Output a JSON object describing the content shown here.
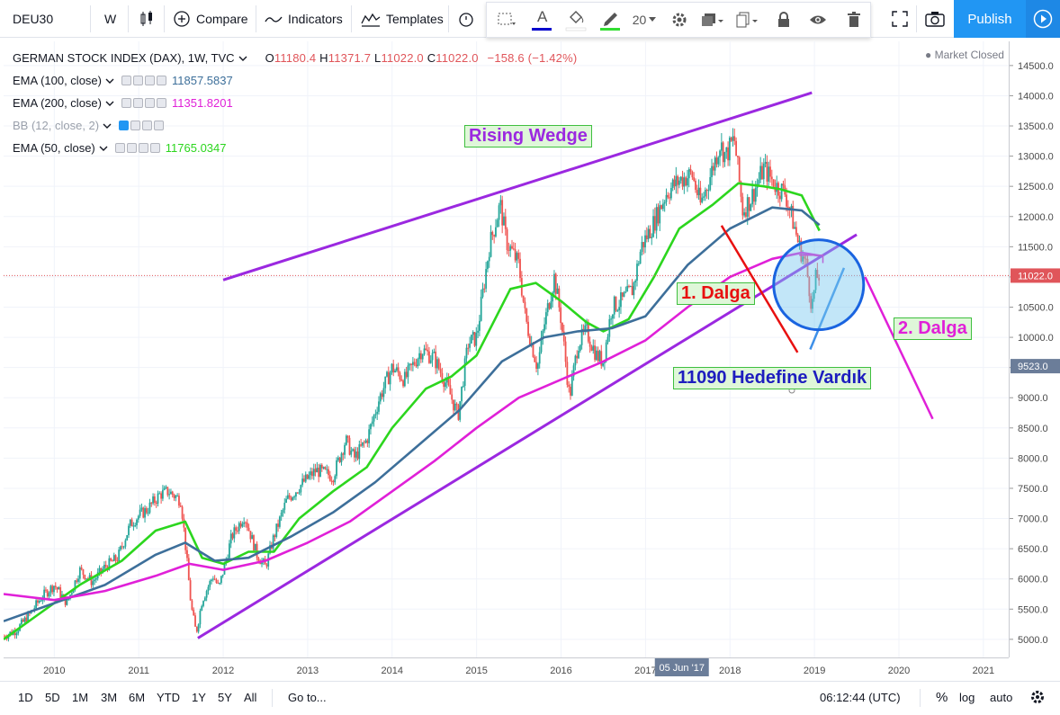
{
  "toolbar": {
    "symbol": "DEU30",
    "interval": "W",
    "compare_label": "Compare",
    "indicators_label": "Indicators",
    "templates_label": "Templates",
    "line_width": "20",
    "publish_label": "Publish"
  },
  "legend": {
    "title": "GERMAN STOCK INDEX (DAX), 1W, TVC",
    "ohlc": {
      "o": "11180.4",
      "h": "11371.7",
      "l": "11022.0",
      "c": "11022.0",
      "change": "−158.6 (−1.42%)"
    },
    "indicators": [
      {
        "label": "EMA (100, close)",
        "value": "11857.5837",
        "color": "#3d6f9a"
      },
      {
        "label": "EMA (200, close)",
        "value": "11351.8201",
        "color": "#e020d8"
      },
      {
        "label": "BB (12, close, 2)",
        "value": "",
        "color": "#9aa0ab"
      },
      {
        "label": "EMA (50, close)",
        "value": "11765.0347",
        "color": "#2cd61e"
      }
    ],
    "market_status": "Market Closed"
  },
  "annotations": {
    "rising_wedge": "Rising Wedge",
    "dalga1": "1. Dalga",
    "dalga2": "2. Dalga",
    "target": "11090 Hedefine Vardık"
  },
  "bottombar": {
    "ranges": [
      "1D",
      "5D",
      "1M",
      "3M",
      "6M",
      "YTD",
      "1Y",
      "5Y",
      "All"
    ],
    "goto_label": "Go to...",
    "clock": "06:12:44 (UTC)",
    "percent": "%",
    "log": "log",
    "auto": "auto"
  },
  "colors": {
    "up": "#26a69a",
    "down": "#ef5350",
    "ema50": "#2cd61e",
    "ema100": "#3d6f9a",
    "ema200": "#e020d8",
    "wedge": "#9b28e0",
    "accent": "#2196f3"
  },
  "chart_data": {
    "type": "candlestick",
    "title": "GERMAN STOCK INDEX (DAX), 1W, TVC",
    "interval": "weekly",
    "y_ticks": [
      5000,
      5500,
      6000,
      6500,
      7000,
      7500,
      8000,
      8500,
      9000,
      9500,
      10000,
      10500,
      11000,
      11500,
      12000,
      12500,
      13000,
      13500,
      14000,
      14500
    ],
    "x_ticks": [
      "2010",
      "2011",
      "2012",
      "2013",
      "2014",
      "2015",
      "2016",
      "2017",
      "2018",
      "2019",
      "2020",
      "2021"
    ],
    "ylim": [
      4700,
      14900
    ],
    "xlim": [
      2009.4,
      2021.3
    ],
    "price_labels": {
      "last": "11022.0",
      "marker": "9523.0"
    },
    "time_marker": "05 Jun '17",
    "price_path": [
      [
        2009.4,
        5050
      ],
      [
        2009.55,
        5150
      ],
      [
        2009.7,
        5400
      ],
      [
        2009.85,
        5700
      ],
      [
        2010.0,
        5900
      ],
      [
        2010.15,
        5600
      ],
      [
        2010.3,
        6150
      ],
      [
        2010.45,
        5950
      ],
      [
        2010.6,
        6200
      ],
      [
        2010.75,
        6350
      ],
      [
        2010.9,
        6900
      ],
      [
        2011.0,
        7050
      ],
      [
        2011.1,
        7150
      ],
      [
        2011.25,
        7400
      ],
      [
        2011.35,
        7450
      ],
      [
        2011.5,
        7300
      ],
      [
        2011.55,
        6600
      ],
      [
        2011.62,
        5550
      ],
      [
        2011.68,
        5100
      ],
      [
        2011.75,
        5650
      ],
      [
        2011.88,
        6050
      ],
      [
        2011.95,
        5850
      ],
      [
        2012.1,
        6700
      ],
      [
        2012.25,
        7050
      ],
      [
        2012.4,
        6400
      ],
      [
        2012.5,
        6200
      ],
      [
        2012.6,
        6700
      ],
      [
        2012.75,
        7300
      ],
      [
        2012.95,
        7600
      ],
      [
        2013.1,
        7800
      ],
      [
        2013.3,
        7700
      ],
      [
        2013.45,
        8300
      ],
      [
        2013.55,
        8000
      ],
      [
        2013.7,
        8300
      ],
      [
        2013.85,
        9000
      ],
      [
        2014.0,
        9500
      ],
      [
        2014.15,
        9300
      ],
      [
        2014.35,
        9800
      ],
      [
        2014.5,
        9650
      ],
      [
        2014.65,
        9200
      ],
      [
        2014.78,
        8700
      ],
      [
        2014.9,
        9900
      ],
      [
        2015.0,
        10000
      ],
      [
        2015.15,
        11500
      ],
      [
        2015.28,
        12200
      ],
      [
        2015.35,
        11600
      ],
      [
        2015.5,
        11200
      ],
      [
        2015.58,
        10300
      ],
      [
        2015.72,
        9500
      ],
      [
        2015.8,
        10200
      ],
      [
        2015.92,
        11000
      ],
      [
        2016.0,
        10300
      ],
      [
        2016.1,
        9000
      ],
      [
        2016.2,
        9900
      ],
      [
        2016.3,
        10100
      ],
      [
        2016.42,
        9700
      ],
      [
        2016.5,
        9600
      ],
      [
        2016.6,
        10500
      ],
      [
        2016.72,
        10600
      ],
      [
        2016.85,
        10800
      ],
      [
        2016.95,
        11500
      ],
      [
        2017.1,
        11900
      ],
      [
        2017.25,
        12400
      ],
      [
        2017.4,
        12600
      ],
      [
        2017.55,
        12700
      ],
      [
        2017.65,
        12200
      ],
      [
        2017.75,
        12600
      ],
      [
        2017.88,
        13200
      ],
      [
        2017.95,
        13000
      ],
      [
        2018.05,
        13300
      ],
      [
        2018.15,
        12100
      ],
      [
        2018.25,
        12300
      ],
      [
        2018.4,
        12800
      ],
      [
        2018.55,
        12500
      ],
      [
        2018.65,
        12400
      ],
      [
        2018.75,
        11900
      ],
      [
        2018.82,
        11500
      ],
      [
        2018.9,
        11200
      ],
      [
        2018.97,
        10500
      ],
      [
        2019.02,
        11000
      ],
      [
        2019.06,
        11022
      ]
    ],
    "series": [
      {
        "name": "EMA (50, close)",
        "points": [
          [
            2009.4,
            5000
          ],
          [
            2009.8,
            5400
          ],
          [
            2010.3,
            5900
          ],
          [
            2010.8,
            6300
          ],
          [
            2011.2,
            6800
          ],
          [
            2011.55,
            6950
          ],
          [
            2011.75,
            6350
          ],
          [
            2012.0,
            6250
          ],
          [
            2012.3,
            6450
          ],
          [
            2012.6,
            6450
          ],
          [
            2012.9,
            7000
          ],
          [
            2013.3,
            7450
          ],
          [
            2013.7,
            7850
          ],
          [
            2014.0,
            8500
          ],
          [
            2014.4,
            9150
          ],
          [
            2014.7,
            9350
          ],
          [
            2015.0,
            9700
          ],
          [
            2015.4,
            10800
          ],
          [
            2015.7,
            10900
          ],
          [
            2016.0,
            10600
          ],
          [
            2016.3,
            10250
          ],
          [
            2016.5,
            10100
          ],
          [
            2016.8,
            10300
          ],
          [
            2017.1,
            11000
          ],
          [
            2017.4,
            11800
          ],
          [
            2017.8,
            12200
          ],
          [
            2018.1,
            12550
          ],
          [
            2018.4,
            12500
          ],
          [
            2018.6,
            12450
          ],
          [
            2018.85,
            12350
          ],
          [
            2019.06,
            11765
          ]
        ]
      },
      {
        "name": "EMA (100, close)",
        "points": [
          [
            2009.4,
            5300
          ],
          [
            2010.0,
            5600
          ],
          [
            2010.6,
            5900
          ],
          [
            2011.2,
            6400
          ],
          [
            2011.55,
            6600
          ],
          [
            2011.9,
            6300
          ],
          [
            2012.3,
            6350
          ],
          [
            2012.8,
            6700
          ],
          [
            2013.3,
            7100
          ],
          [
            2013.8,
            7600
          ],
          [
            2014.3,
            8200
          ],
          [
            2014.8,
            8800
          ],
          [
            2015.3,
            9600
          ],
          [
            2015.8,
            10000
          ],
          [
            2016.2,
            10100
          ],
          [
            2016.6,
            10150
          ],
          [
            2017.0,
            10350
          ],
          [
            2017.5,
            11200
          ],
          [
            2018.0,
            11800
          ],
          [
            2018.5,
            12150
          ],
          [
            2018.85,
            12100
          ],
          [
            2019.06,
            11858
          ]
        ]
      },
      {
        "name": "EMA (200, close)",
        "points": [
          [
            2009.4,
            5750
          ],
          [
            2010.0,
            5650
          ],
          [
            2010.6,
            5800
          ],
          [
            2011.2,
            6050
          ],
          [
            2011.6,
            6250
          ],
          [
            2012.0,
            6150
          ],
          [
            2012.5,
            6300
          ],
          [
            2013.0,
            6600
          ],
          [
            2013.5,
            6950
          ],
          [
            2014.0,
            7450
          ],
          [
            2014.5,
            7950
          ],
          [
            2015.0,
            8500
          ],
          [
            2015.5,
            9000
          ],
          [
            2016.0,
            9300
          ],
          [
            2016.5,
            9600
          ],
          [
            2017.0,
            9950
          ],
          [
            2017.5,
            10500
          ],
          [
            2018.0,
            11000
          ],
          [
            2018.5,
            11300
          ],
          [
            2018.85,
            11400
          ],
          [
            2019.06,
            11352
          ]
        ]
      }
    ],
    "drawings": [
      {
        "name": "wedge-upper",
        "color": "#9b28e0",
        "points": [
          [
            2012.0,
            10950
          ],
          [
            2018.97,
            14050
          ]
        ]
      },
      {
        "name": "wedge-lower",
        "color": "#9b28e0",
        "points": [
          [
            2011.7,
            5020
          ],
          [
            2019.5,
            11700
          ]
        ]
      },
      {
        "name": "dalga-1-line",
        "color": "#e81010",
        "points": [
          [
            2017.9,
            11850
          ],
          [
            2018.8,
            9750
          ]
        ]
      },
      {
        "name": "dalga-2-line",
        "color": "#e020d8",
        "points": [
          [
            2019.6,
            11000
          ],
          [
            2020.4,
            8650
          ]
        ]
      },
      {
        "name": "rebound-line",
        "color": "#3d8fe8",
        "points": [
          [
            2018.95,
            9800
          ],
          [
            2019.35,
            11150
          ]
        ]
      }
    ]
  }
}
